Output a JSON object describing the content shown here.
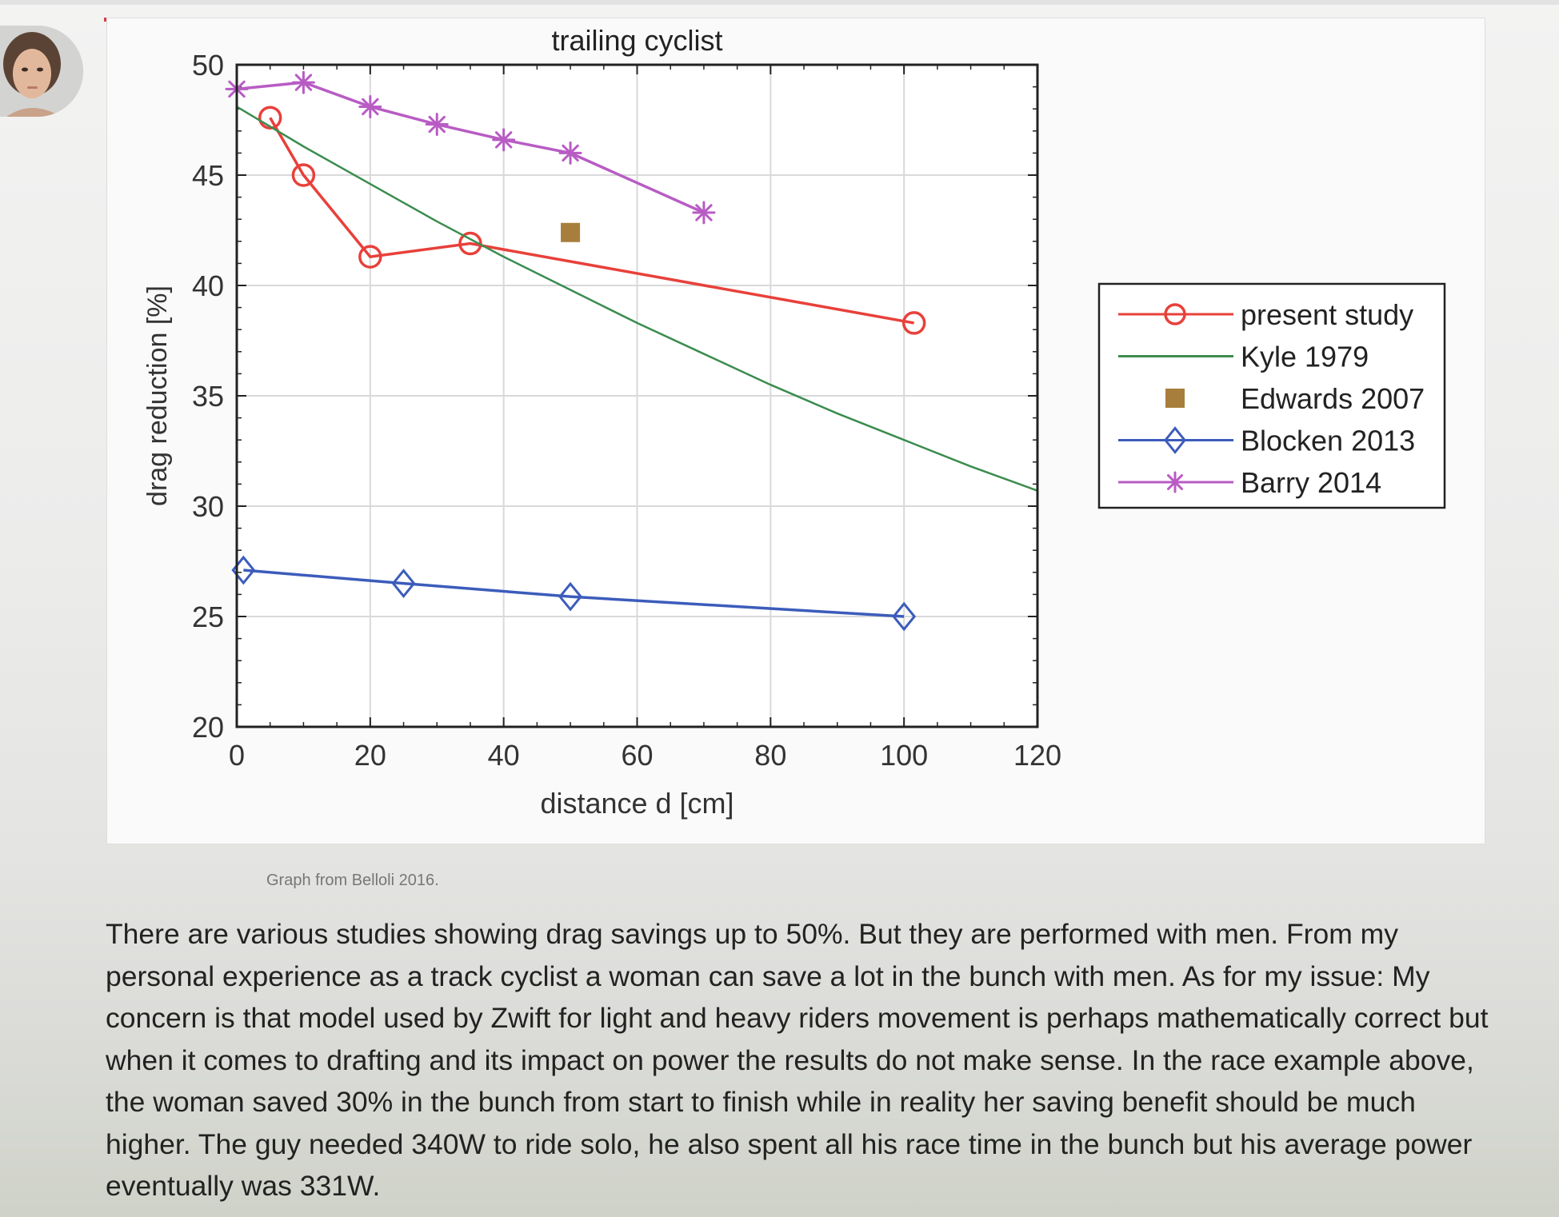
{
  "post": {
    "caption": "Graph from Belloli 2016.",
    "body": "There are various studies showing drag savings up to 50%. But they are performed with men. From my personal experience as a track cyclist a woman can save a lot in the bunch with men. As for my issue: My concern is that model used by Zwift for light and heavy riders movement is perhaps mathematically correct but when it comes to drafting and its impact on power the results do not make sense. In the race example above, the woman saved 30% in the bunch from start to finish while in reality her saving benefit should be much higher. The guy needed 340W to ride solo, he also spent all his race time in the bunch but his average power eventually was 331W."
  },
  "chart_data": {
    "type": "line",
    "title": "trailing cyclist",
    "xlabel": "distance d [cm]",
    "ylabel": "drag reduction [%]",
    "xlim": [
      0,
      120
    ],
    "ylim": [
      20,
      50
    ],
    "xticks": [
      0,
      20,
      40,
      60,
      80,
      100,
      120
    ],
    "yticks": [
      20,
      25,
      30,
      35,
      40,
      45,
      50
    ],
    "grid": true,
    "legend_position": "right",
    "series": [
      {
        "name": "present study",
        "color": "#e8403a",
        "marker": "circle",
        "line": true,
        "points": [
          [
            5,
            47.6
          ],
          [
            10,
            45.0
          ],
          [
            20,
            41.3
          ],
          [
            35,
            41.9
          ],
          [
            101.5,
            38.3
          ]
        ]
      },
      {
        "name": "Kyle 1979",
        "color": "#3b8c4e",
        "marker": "none",
        "line": true,
        "points": [
          [
            0,
            48.1
          ],
          [
            10,
            46.3
          ],
          [
            20,
            44.6
          ],
          [
            30,
            42.9
          ],
          [
            40,
            41.3
          ],
          [
            50,
            39.8
          ],
          [
            60,
            38.3
          ],
          [
            70,
            36.9
          ],
          [
            80,
            35.5
          ],
          [
            90,
            34.2
          ],
          [
            100,
            33.0
          ],
          [
            110,
            31.8
          ],
          [
            120,
            30.7
          ]
        ]
      },
      {
        "name": "Edwards 2007",
        "color": "#a87e3c",
        "marker": "square",
        "line": false,
        "points": [
          [
            50,
            42.4
          ]
        ]
      },
      {
        "name": "Blocken 2013",
        "color": "#3c5cbb",
        "marker": "diamond",
        "line": true,
        "points": [
          [
            1,
            27.1
          ],
          [
            25,
            26.5
          ],
          [
            50,
            25.9
          ],
          [
            100,
            25.0
          ]
        ]
      },
      {
        "name": "Barry 2014",
        "color": "#b85cc4",
        "marker": "asterisk",
        "line": true,
        "points": [
          [
            0,
            48.9
          ],
          [
            10,
            49.2
          ],
          [
            20,
            48.1
          ],
          [
            30,
            47.3
          ],
          [
            40,
            46.6
          ],
          [
            50,
            46.0
          ],
          [
            70,
            43.3
          ]
        ]
      }
    ]
  }
}
